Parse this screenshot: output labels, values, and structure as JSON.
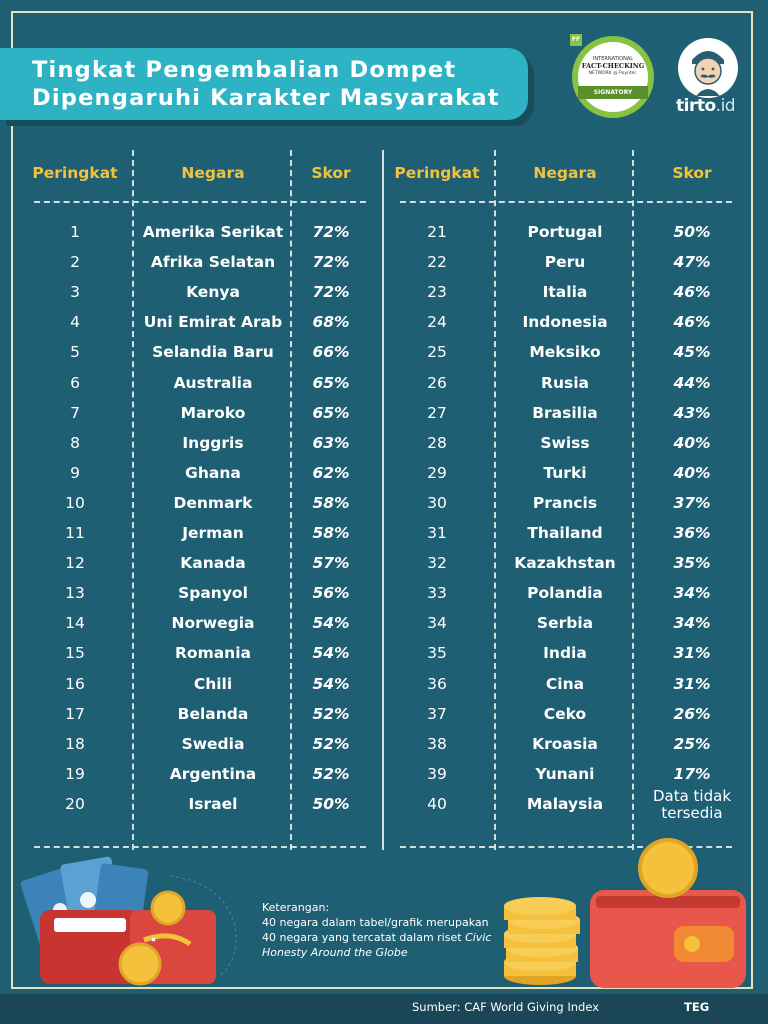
{
  "header": {
    "title_line1": "Tingkat Pengembalian Dompet",
    "title_line2": "Dipengaruhi Karakter Masyarakat"
  },
  "badge": {
    "corner": "FF",
    "line1": "INTERNATIONAL",
    "line2": "FACT-CHECKING",
    "line3": "NETWORK @ Poynter.",
    "ribbon": "SIGNATORY"
  },
  "logo": {
    "name": "tirto",
    "suffix": "id"
  },
  "table": {
    "columns": {
      "rank": "Peringkat",
      "country": "Negara",
      "score": "Skor"
    },
    "left_rows": [
      {
        "rank": "1",
        "country": "Amerika Serikat",
        "score": "72%"
      },
      {
        "rank": "2",
        "country": "Afrika Selatan",
        "score": "72%"
      },
      {
        "rank": "3",
        "country": "Kenya",
        "score": "72%"
      },
      {
        "rank": "4",
        "country": "Uni Emirat Arab",
        "score": "68%"
      },
      {
        "rank": "5",
        "country": "Selandia Baru",
        "score": "66%"
      },
      {
        "rank": "6",
        "country": "Australia",
        "score": "65%"
      },
      {
        "rank": "7",
        "country": "Maroko",
        "score": "65%"
      },
      {
        "rank": "8",
        "country": "Inggris",
        "score": "63%"
      },
      {
        "rank": "9",
        "country": "Ghana",
        "score": "62%"
      },
      {
        "rank": "10",
        "country": "Denmark",
        "score": "58%"
      },
      {
        "rank": "11",
        "country": "Jerman",
        "score": "58%"
      },
      {
        "rank": "12",
        "country": "Kanada",
        "score": "57%"
      },
      {
        "rank": "13",
        "country": "Spanyol",
        "score": "56%"
      },
      {
        "rank": "14",
        "country": "Norwegia",
        "score": "54%"
      },
      {
        "rank": "15",
        "country": "Romania",
        "score": "54%"
      },
      {
        "rank": "16",
        "country": "Chili",
        "score": "54%"
      },
      {
        "rank": "17",
        "country": "Belanda",
        "score": "52%"
      },
      {
        "rank": "18",
        "country": "Swedia",
        "score": "52%"
      },
      {
        "rank": "19",
        "country": "Argentina",
        "score": "52%"
      },
      {
        "rank": "20",
        "country": "Israel",
        "score": "50%"
      }
    ],
    "right_rows": [
      {
        "rank": "21",
        "country": "Portugal",
        "score": "50%"
      },
      {
        "rank": "22",
        "country": "Peru",
        "score": "47%"
      },
      {
        "rank": "23",
        "country": "Italia",
        "score": "46%"
      },
      {
        "rank": "24",
        "country": "Indonesia",
        "score": "46%"
      },
      {
        "rank": "25",
        "country": "Meksiko",
        "score": "45%"
      },
      {
        "rank": "26",
        "country": "Rusia",
        "score": "44%"
      },
      {
        "rank": "27",
        "country": "Brasilia",
        "score": "43%"
      },
      {
        "rank": "28",
        "country": "Swiss",
        "score": "40%"
      },
      {
        "rank": "29",
        "country": "Turki",
        "score": "40%"
      },
      {
        "rank": "30",
        "country": "Prancis",
        "score": "37%"
      },
      {
        "rank": "31",
        "country": "Thailand",
        "score": "36%"
      },
      {
        "rank": "32",
        "country": "Kazakhstan",
        "score": "35%"
      },
      {
        "rank": "33",
        "country": "Polandia",
        "score": "34%"
      },
      {
        "rank": "34",
        "country": "Serbia",
        "score": "34%"
      },
      {
        "rank": "35",
        "country": "India",
        "score": "31%"
      },
      {
        "rank": "36",
        "country": "Cina",
        "score": "31%"
      },
      {
        "rank": "37",
        "country": "Ceko",
        "score": "26%"
      },
      {
        "rank": "38",
        "country": "Kroasia",
        "score": "25%"
      },
      {
        "rank": "39",
        "country": "Yunani",
        "score": "17%"
      },
      {
        "rank": "40",
        "country": "Malaysia",
        "score": "Data tidak tersedia"
      }
    ]
  },
  "note": {
    "label": "Keterangan:",
    "line1": "40 negara dalam tabel/grafik merupakan",
    "line2": "40 negara yang tercatat dalam riset",
    "italic": "Civic Honesty Around the Globe"
  },
  "footer": {
    "source": "Sumber: CAF World Giving Index",
    "credit": "TEG"
  },
  "colors": {
    "background": "#1f5f73",
    "title_banner": "#2db3c3",
    "header_text": "#f2c23b",
    "frame": "#e7e2b8",
    "wallet_red": "#d9473f",
    "coin_gold": "#f5c13c"
  },
  "icons": [
    "fact-checking-badge-icon",
    "tirto-mascot-icon",
    "wallet-money-icon",
    "coins-stack-icon",
    "wallet-coin-icon"
  ]
}
